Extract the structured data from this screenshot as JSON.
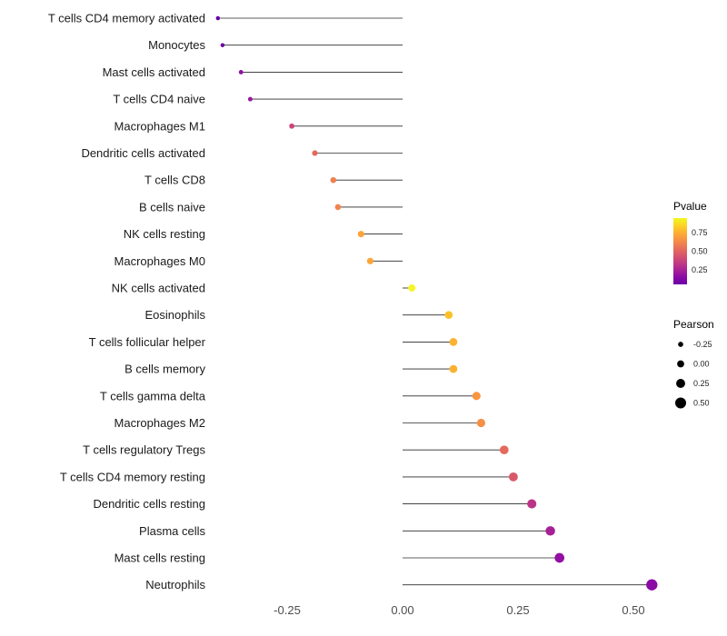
{
  "chart_data": {
    "type": "scatter",
    "subtype": "lollipop",
    "title": "",
    "xlabel": "",
    "ylabel": "",
    "xlim": [
      -0.47,
      0.58
    ],
    "grid": false,
    "x_ticks": [
      -0.25,
      0.0,
      0.25,
      0.5
    ],
    "x_tick_labels": [
      "-0.25",
      "0.00",
      "0.25",
      "0.50"
    ],
    "points": [
      {
        "label": "T cells CD4 memory activated",
        "pearson": -0.4,
        "color": "#6300a7"
      },
      {
        "label": "Monocytes",
        "pearson": -0.39,
        "color": "#6a00a8"
      },
      {
        "label": "Mast cells activated",
        "pearson": -0.35,
        "color": "#8f0da4"
      },
      {
        "label": "T cells CD4 naive",
        "pearson": -0.33,
        "color": "#9c179e"
      },
      {
        "label": "Macrophages M1",
        "pearson": -0.24,
        "color": "#ca4679"
      },
      {
        "label": "Dendritic cells activated",
        "pearson": -0.19,
        "color": "#e4675e"
      },
      {
        "label": "T cells CD8",
        "pearson": -0.15,
        "color": "#f0804e"
      },
      {
        "label": "B cells naive",
        "pearson": -0.14,
        "color": "#f2844b"
      },
      {
        "label": "NK cells resting",
        "pearson": -0.09,
        "color": "#fba238"
      },
      {
        "label": "Macrophages M0",
        "pearson": -0.07,
        "color": "#fca636"
      },
      {
        "label": "NK cells activated",
        "pearson": 0.02,
        "color": "#f4f523"
      },
      {
        "label": "Eosinophils",
        "pearson": 0.1,
        "color": "#fcc029"
      },
      {
        "label": "T cells follicular helper",
        "pearson": 0.11,
        "color": "#fcb130"
      },
      {
        "label": "B cells memory",
        "pearson": 0.11,
        "color": "#fcb130"
      },
      {
        "label": "T cells gamma delta",
        "pearson": 0.16,
        "color": "#f89540"
      },
      {
        "label": "Macrophages M2",
        "pearson": 0.17,
        "color": "#f78f46"
      },
      {
        "label": "T cells regulatory  Tregs",
        "pearson": 0.22,
        "color": "#e5695c"
      },
      {
        "label": "T cells CD4 memory resting",
        "pearson": 0.24,
        "color": "#d9576a"
      },
      {
        "label": "Dendritic cells resting",
        "pearson": 0.28,
        "color": "#bb3488"
      },
      {
        "label": "Plasma cells",
        "pearson": 0.32,
        "color": "#a62098"
      },
      {
        "label": "Mast cells resting",
        "pearson": 0.34,
        "color": "#940fa3"
      },
      {
        "label": "Neutrophils",
        "pearson": 0.54,
        "color": "#8b09a5"
      }
    ],
    "legends": {
      "pvalue": {
        "title": "Pvalue",
        "ticks": [
          "0.75",
          "0.50",
          "0.25"
        ],
        "range": [
          0.05,
          0.95
        ],
        "gradient": [
          "#f0f921",
          "#fcce25",
          "#fca636",
          "#f2844b",
          "#e16462",
          "#cc4778",
          "#b12a90",
          "#8f0da4",
          "#6a00a8"
        ]
      },
      "pearson": {
        "title": "Pearson",
        "items": [
          {
            "label": "-0.25",
            "value": -0.25
          },
          {
            "label": "0.00",
            "value": 0.0
          },
          {
            "label": "0.25",
            "value": 0.25
          },
          {
            "label": "0.50",
            "value": 0.5
          }
        ]
      }
    }
  }
}
